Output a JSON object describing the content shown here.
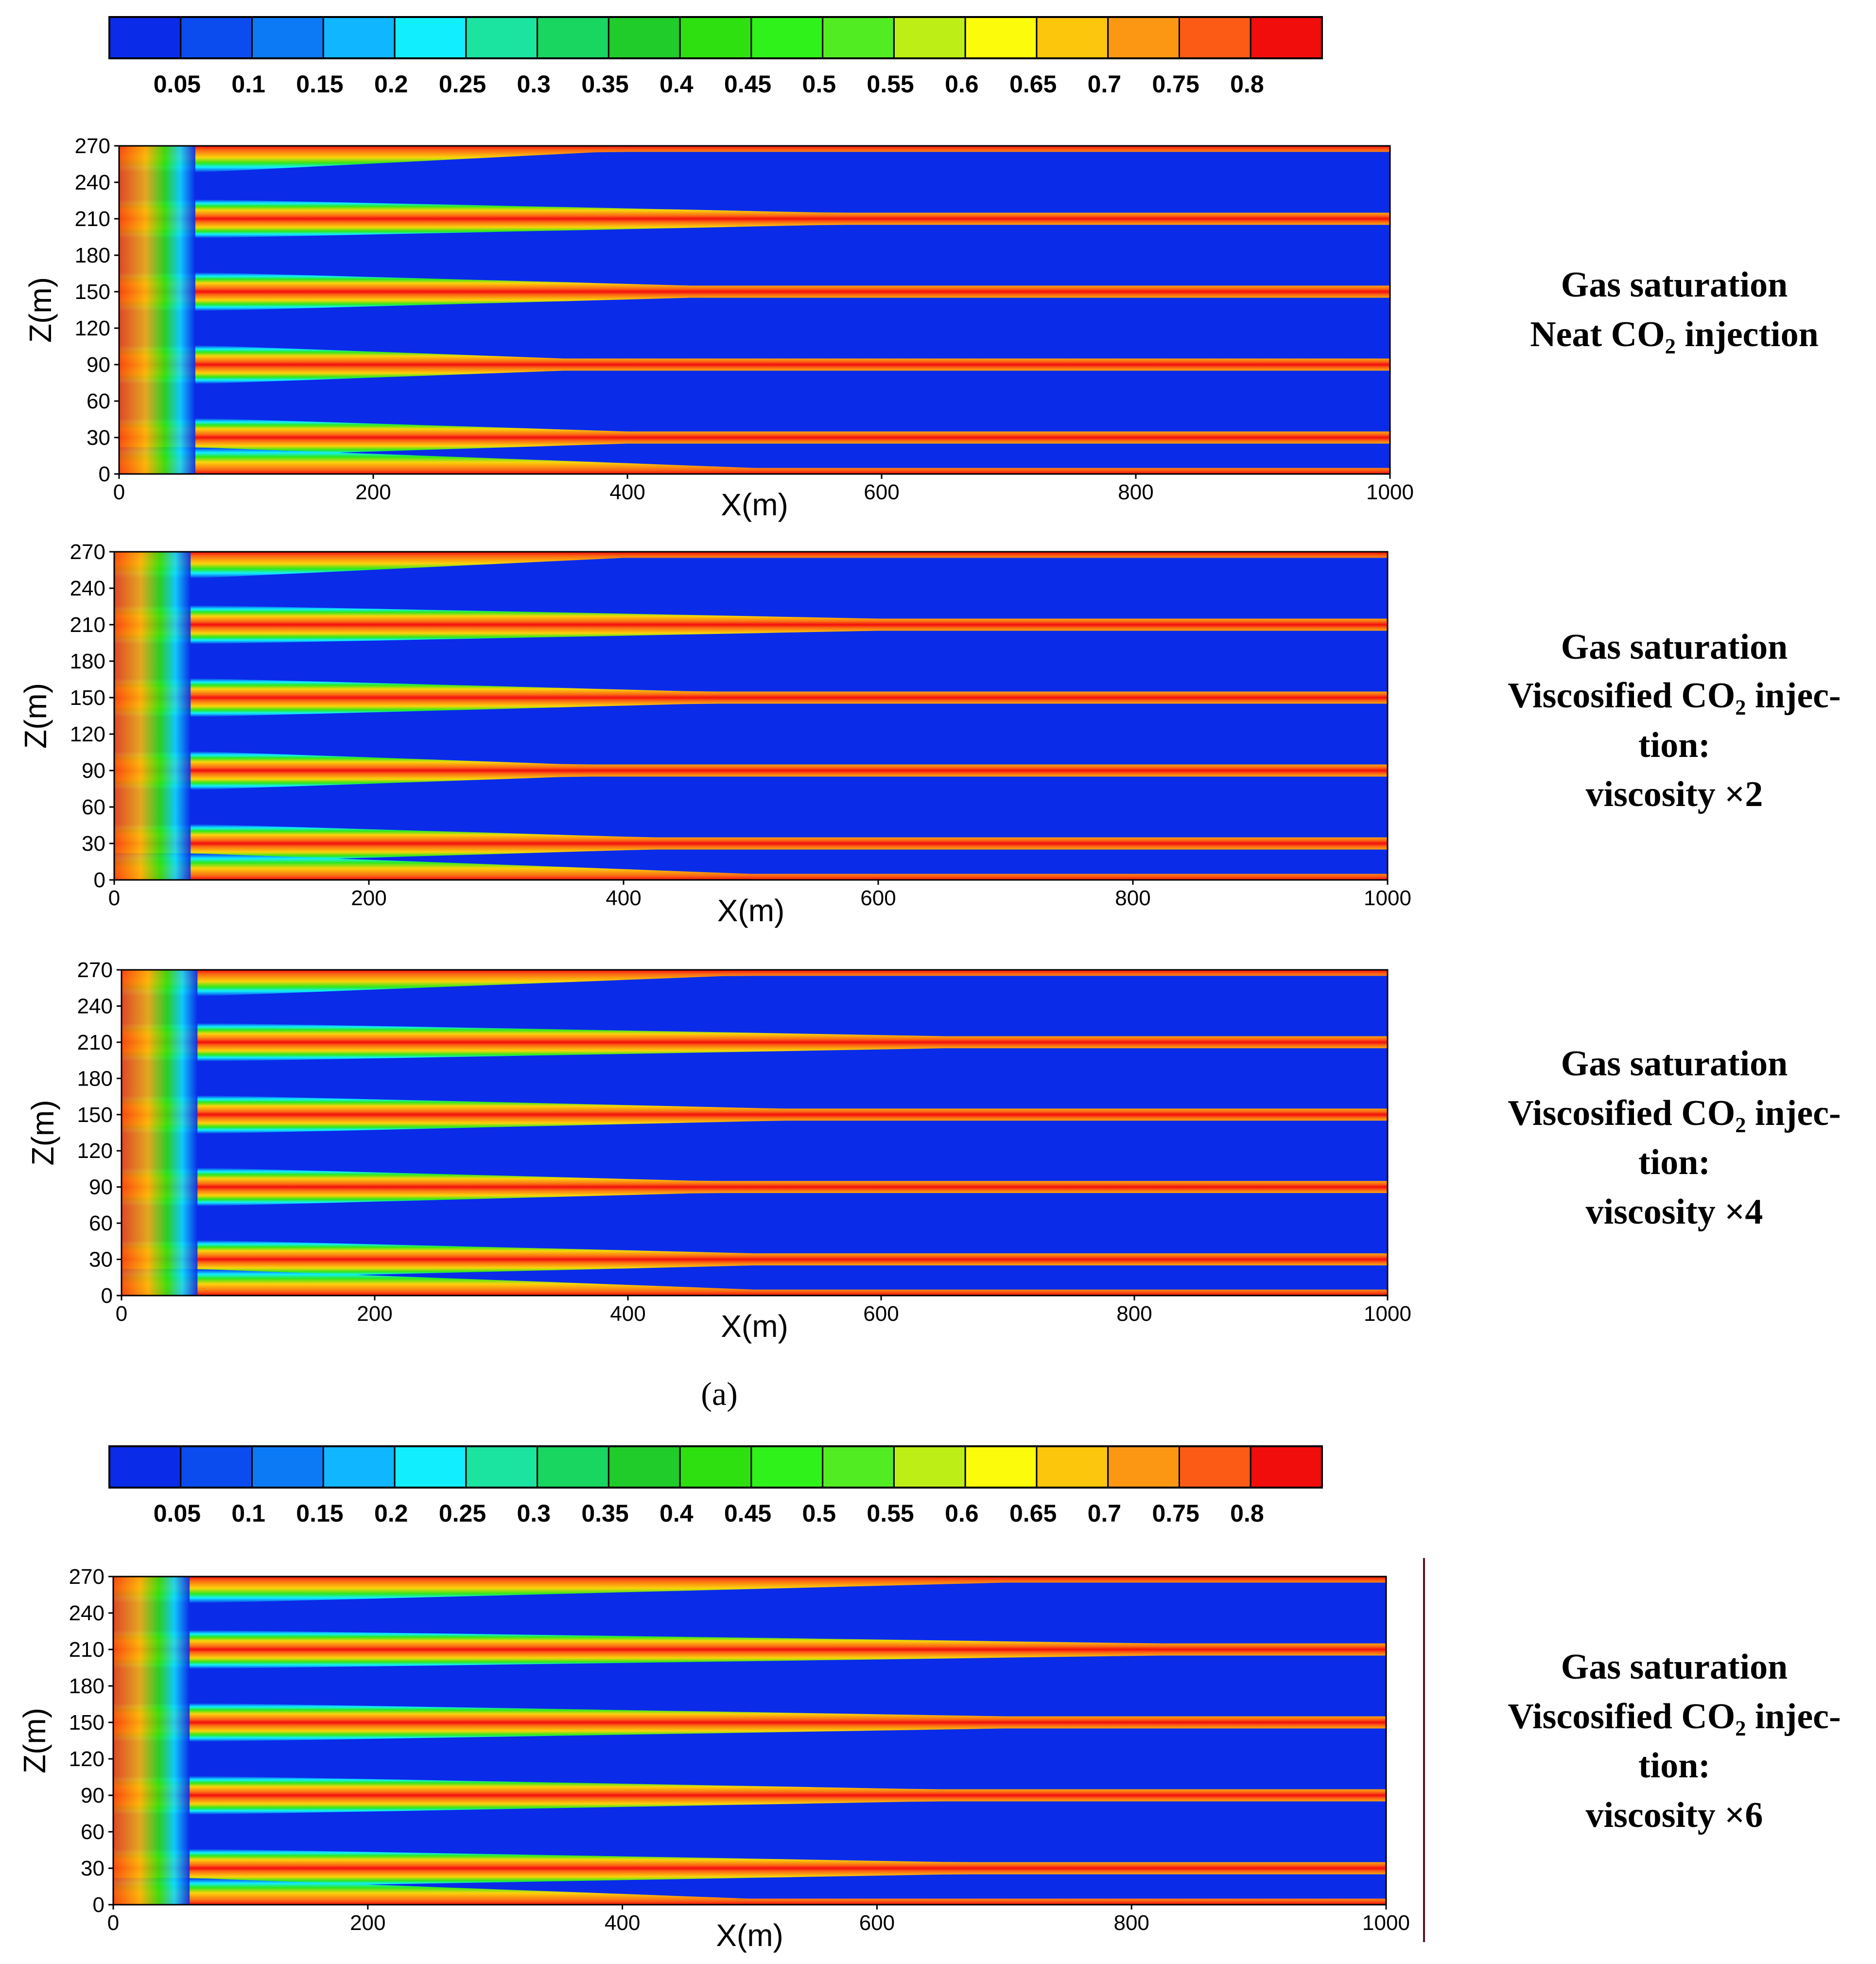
{
  "colorbar": {
    "labels": [
      "0.05",
      "0.1",
      "0.15",
      "0.2",
      "0.25",
      "0.3",
      "0.35",
      "0.4",
      "0.45",
      "0.5",
      "0.55",
      "0.6",
      "0.65",
      "0.7",
      "0.75",
      "0.8"
    ],
    "colors": [
      "#0a2be8",
      "#0b4cef",
      "#0d7af5",
      "#10b6ff",
      "#11efff",
      "#1be3a0",
      "#18d660",
      "#20cc2a",
      "#2ee00f",
      "#2ff21a",
      "#52ec22",
      "#bdef16",
      "#fbfb0b",
      "#fbc60c",
      "#fb9712",
      "#fb5b14",
      "#f20d0d"
    ]
  },
  "sublabels": [
    "(a)"
  ],
  "chart_data": [
    {
      "type": "heatmap",
      "variable": "Gas saturation",
      "title_lines": [
        "Gas saturation",
        "Neat CO₂ injection"
      ],
      "xlabel": "X(m)",
      "ylabel": "Z(m)",
      "xlim": [
        0,
        1000
      ],
      "ylim": [
        0,
        270
      ],
      "xticks": [
        "0",
        "200",
        "400",
        "600",
        "800",
        "1000"
      ],
      "yticks": [
        "0",
        "30",
        "60",
        "90",
        "120",
        "150",
        "180",
        "210",
        "240",
        "270"
      ],
      "layer_boundaries_z": [
        30,
        90,
        150,
        210
      ],
      "front_x_start": [
        380,
        560,
        450,
        350,
        400
      ],
      "color_scale": [
        0.05,
        0.8
      ]
    },
    {
      "type": "heatmap",
      "variable": "Gas saturation",
      "title_lines": [
        "Gas saturation",
        "Viscosified CO₂ injec-",
        "tion:",
        "viscosity ×2"
      ],
      "xlabel": "X(m)",
      "ylabel": "Z(m)",
      "xlim": [
        0,
        1000
      ],
      "ylim": [
        0,
        270
      ],
      "xticks": [
        "0",
        "200",
        "400",
        "600",
        "800",
        "1000"
      ],
      "yticks": [
        "0",
        "30",
        "60",
        "90",
        "120",
        "150",
        "180",
        "210",
        "240",
        "270"
      ],
      "layer_boundaries_z": [
        30,
        90,
        150,
        210
      ],
      "front_x_start": [
        400,
        600,
        460,
        360,
        420
      ],
      "color_scale": [
        0.05,
        0.8
      ]
    },
    {
      "type": "heatmap",
      "variable": "Gas saturation",
      "title_lines": [
        "Gas saturation",
        "Viscosified CO₂ injec-",
        "tion:",
        "viscosity ×4"
      ],
      "xlabel": "X(m)",
      "ylabel": "Z(m)",
      "xlim": [
        0,
        1000
      ],
      "ylim": [
        0,
        270
      ],
      "xticks": [
        "0",
        "200",
        "400",
        "600",
        "800",
        "1000"
      ],
      "yticks": [
        "0",
        "30",
        "60",
        "90",
        "120",
        "150",
        "180",
        "210",
        "240",
        "270"
      ],
      "layer_boundaries_z": [
        30,
        90,
        150,
        210
      ],
      "front_x_start": [
        480,
        650,
        520,
        460,
        500
      ],
      "color_scale": [
        0.05,
        0.8
      ]
    },
    {
      "type": "heatmap",
      "variable": "Gas saturation",
      "title_lines": [
        "Gas saturation",
        "Viscosified CO₂ injec-",
        "tion:",
        "viscosity ×6"
      ],
      "xlabel": "X(m)",
      "ylabel": "Z(m)",
      "xlim": [
        0,
        1000
      ],
      "ylim": [
        0,
        270
      ],
      "xticks": [
        "0",
        "200",
        "400",
        "600",
        "800",
        "1000"
      ],
      "yticks": [
        "0",
        "30",
        "60",
        "90",
        "120",
        "150",
        "180",
        "210",
        "240",
        "270"
      ],
      "layer_boundaries_z": [
        30,
        90,
        150,
        210
      ],
      "front_x_start": [
        700,
        820,
        700,
        640,
        660
      ],
      "color_scale": [
        0.05,
        0.8
      ]
    }
  ]
}
